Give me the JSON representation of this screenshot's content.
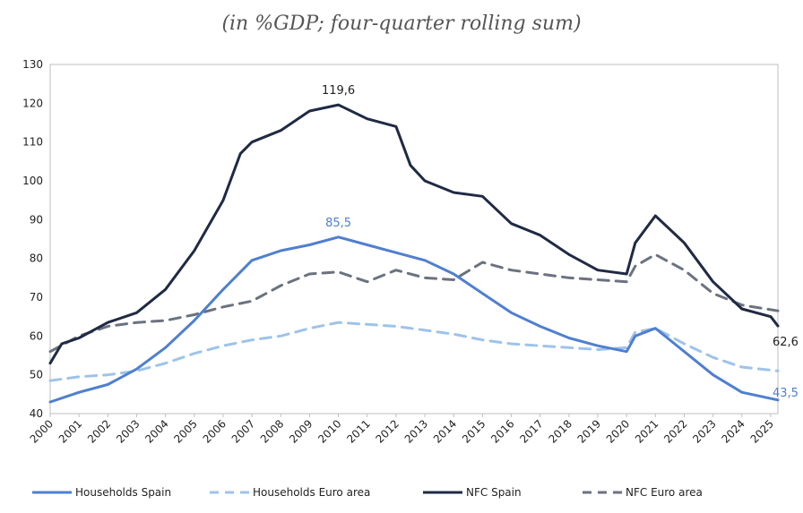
{
  "subtitle": "(in %GDP; four-quarter rolling sum)",
  "chart_data": {
    "type": "line",
    "xlim": [
      2000,
      2025.25
    ],
    "ylim": [
      40,
      130
    ],
    "yticks": [
      40,
      50,
      60,
      70,
      80,
      90,
      100,
      110,
      120,
      130
    ],
    "xticks": [
      "2000",
      "2001",
      "2002",
      "2003",
      "2004",
      "2005",
      "2006",
      "2007",
      "2008",
      "2009",
      "2010",
      "2011",
      "2012",
      "2013",
      "2014",
      "2015",
      "2016",
      "2017",
      "2018",
      "2019",
      "2020",
      "2021",
      "2022",
      "2023",
      "2024",
      "2025"
    ],
    "grid": false,
    "legend_position": "bottom",
    "series": [
      {
        "name": "Households Spain",
        "color": "#4f7fd0",
        "style": "solid",
        "points": [
          [
            2000,
            43
          ],
          [
            2001,
            45.5
          ],
          [
            2002,
            47.5
          ],
          [
            2003,
            51.5
          ],
          [
            2004,
            57
          ],
          [
            2005,
            64
          ],
          [
            2006,
            72
          ],
          [
            2007,
            79.5
          ],
          [
            2008,
            82
          ],
          [
            2009,
            83.5
          ],
          [
            2010,
            85.5
          ],
          [
            2011,
            83.5
          ],
          [
            2012,
            81.5
          ],
          [
            2013,
            79.5
          ],
          [
            2014,
            76
          ],
          [
            2015,
            71
          ],
          [
            2016,
            66
          ],
          [
            2017,
            62.5
          ],
          [
            2018,
            59.5
          ],
          [
            2019,
            57.5
          ],
          [
            2020,
            56
          ],
          [
            2020.3,
            60
          ],
          [
            2021,
            62
          ],
          [
            2022,
            56
          ],
          [
            2023,
            50
          ],
          [
            2024,
            45.5
          ],
          [
            2025.25,
            43.5
          ]
        ]
      },
      {
        "name": "Households Euro area",
        "color": "#9ec3ea",
        "style": "dashed",
        "points": [
          [
            2000,
            48.5
          ],
          [
            2001,
            49.5
          ],
          [
            2002,
            50
          ],
          [
            2003,
            51
          ],
          [
            2004,
            53
          ],
          [
            2005,
            55.5
          ],
          [
            2006,
            57.5
          ],
          [
            2007,
            59
          ],
          [
            2008,
            60
          ],
          [
            2009,
            62
          ],
          [
            2010,
            63.5
          ],
          [
            2011,
            63
          ],
          [
            2012,
            62.5
          ],
          [
            2013,
            61.5
          ],
          [
            2014,
            60.5
          ],
          [
            2015,
            59
          ],
          [
            2016,
            58
          ],
          [
            2017,
            57.5
          ],
          [
            2018,
            57
          ],
          [
            2019,
            56.5
          ],
          [
            2020,
            57
          ],
          [
            2020.3,
            61
          ],
          [
            2021,
            62
          ],
          [
            2022,
            58
          ],
          [
            2023,
            54.5
          ],
          [
            2024,
            52
          ],
          [
            2025.25,
            51
          ]
        ]
      },
      {
        "name": "NFC Spain",
        "color": "#1f2a44",
        "style": "solid",
        "points": [
          [
            2000,
            53
          ],
          [
            2000.4,
            58
          ],
          [
            2001,
            59.5
          ],
          [
            2002,
            63.5
          ],
          [
            2003,
            66
          ],
          [
            2004,
            72
          ],
          [
            2005,
            82
          ],
          [
            2006,
            95
          ],
          [
            2006.6,
            107
          ],
          [
            2007,
            110
          ],
          [
            2008,
            113
          ],
          [
            2009,
            118
          ],
          [
            2010,
            119.6
          ],
          [
            2011,
            116
          ],
          [
            2012,
            114
          ],
          [
            2012.5,
            104
          ],
          [
            2013,
            100
          ],
          [
            2014,
            97
          ],
          [
            2015,
            96
          ],
          [
            2016,
            89
          ],
          [
            2017,
            86
          ],
          [
            2018,
            81
          ],
          [
            2019,
            77
          ],
          [
            2020,
            76
          ],
          [
            2020.3,
            84
          ],
          [
            2021,
            91
          ],
          [
            2022,
            84
          ],
          [
            2023,
            74
          ],
          [
            2024,
            67
          ],
          [
            2025,
            65
          ],
          [
            2025.25,
            62.6
          ]
        ]
      },
      {
        "name": "NFC Euro area",
        "color": "#6b7280",
        "style": "dashed",
        "points": [
          [
            2000,
            56
          ],
          [
            2001,
            60
          ],
          [
            2002,
            62.5
          ],
          [
            2003,
            63.5
          ],
          [
            2004,
            64
          ],
          [
            2005,
            65.5
          ],
          [
            2006,
            67.5
          ],
          [
            2007,
            69
          ],
          [
            2008,
            73
          ],
          [
            2009,
            76
          ],
          [
            2010,
            76.5
          ],
          [
            2011,
            74
          ],
          [
            2012,
            77
          ],
          [
            2013,
            75
          ],
          [
            2014,
            74.5
          ],
          [
            2015,
            79
          ],
          [
            2016,
            77
          ],
          [
            2017,
            76
          ],
          [
            2018,
            75
          ],
          [
            2019,
            74.5
          ],
          [
            2020,
            74
          ],
          [
            2020.3,
            78
          ],
          [
            2021,
            81
          ],
          [
            2022,
            77
          ],
          [
            2023,
            71
          ],
          [
            2024,
            68
          ],
          [
            2025.25,
            66.5
          ]
        ]
      }
    ],
    "annotations": [
      {
        "text": "119,6",
        "x": 2010,
        "y": 119.6,
        "color": "#222222",
        "placement": "above"
      },
      {
        "text": "85,5",
        "x": 2010,
        "y": 85.5,
        "color": "#4f7fd0",
        "placement": "above"
      },
      {
        "text": "62,6",
        "x": 2025.25,
        "y": 62.6,
        "color": "#222222",
        "placement": "below-right"
      },
      {
        "text": "43,5",
        "x": 2025.25,
        "y": 43.5,
        "color": "#4f7fd0",
        "placement": "right"
      }
    ]
  }
}
